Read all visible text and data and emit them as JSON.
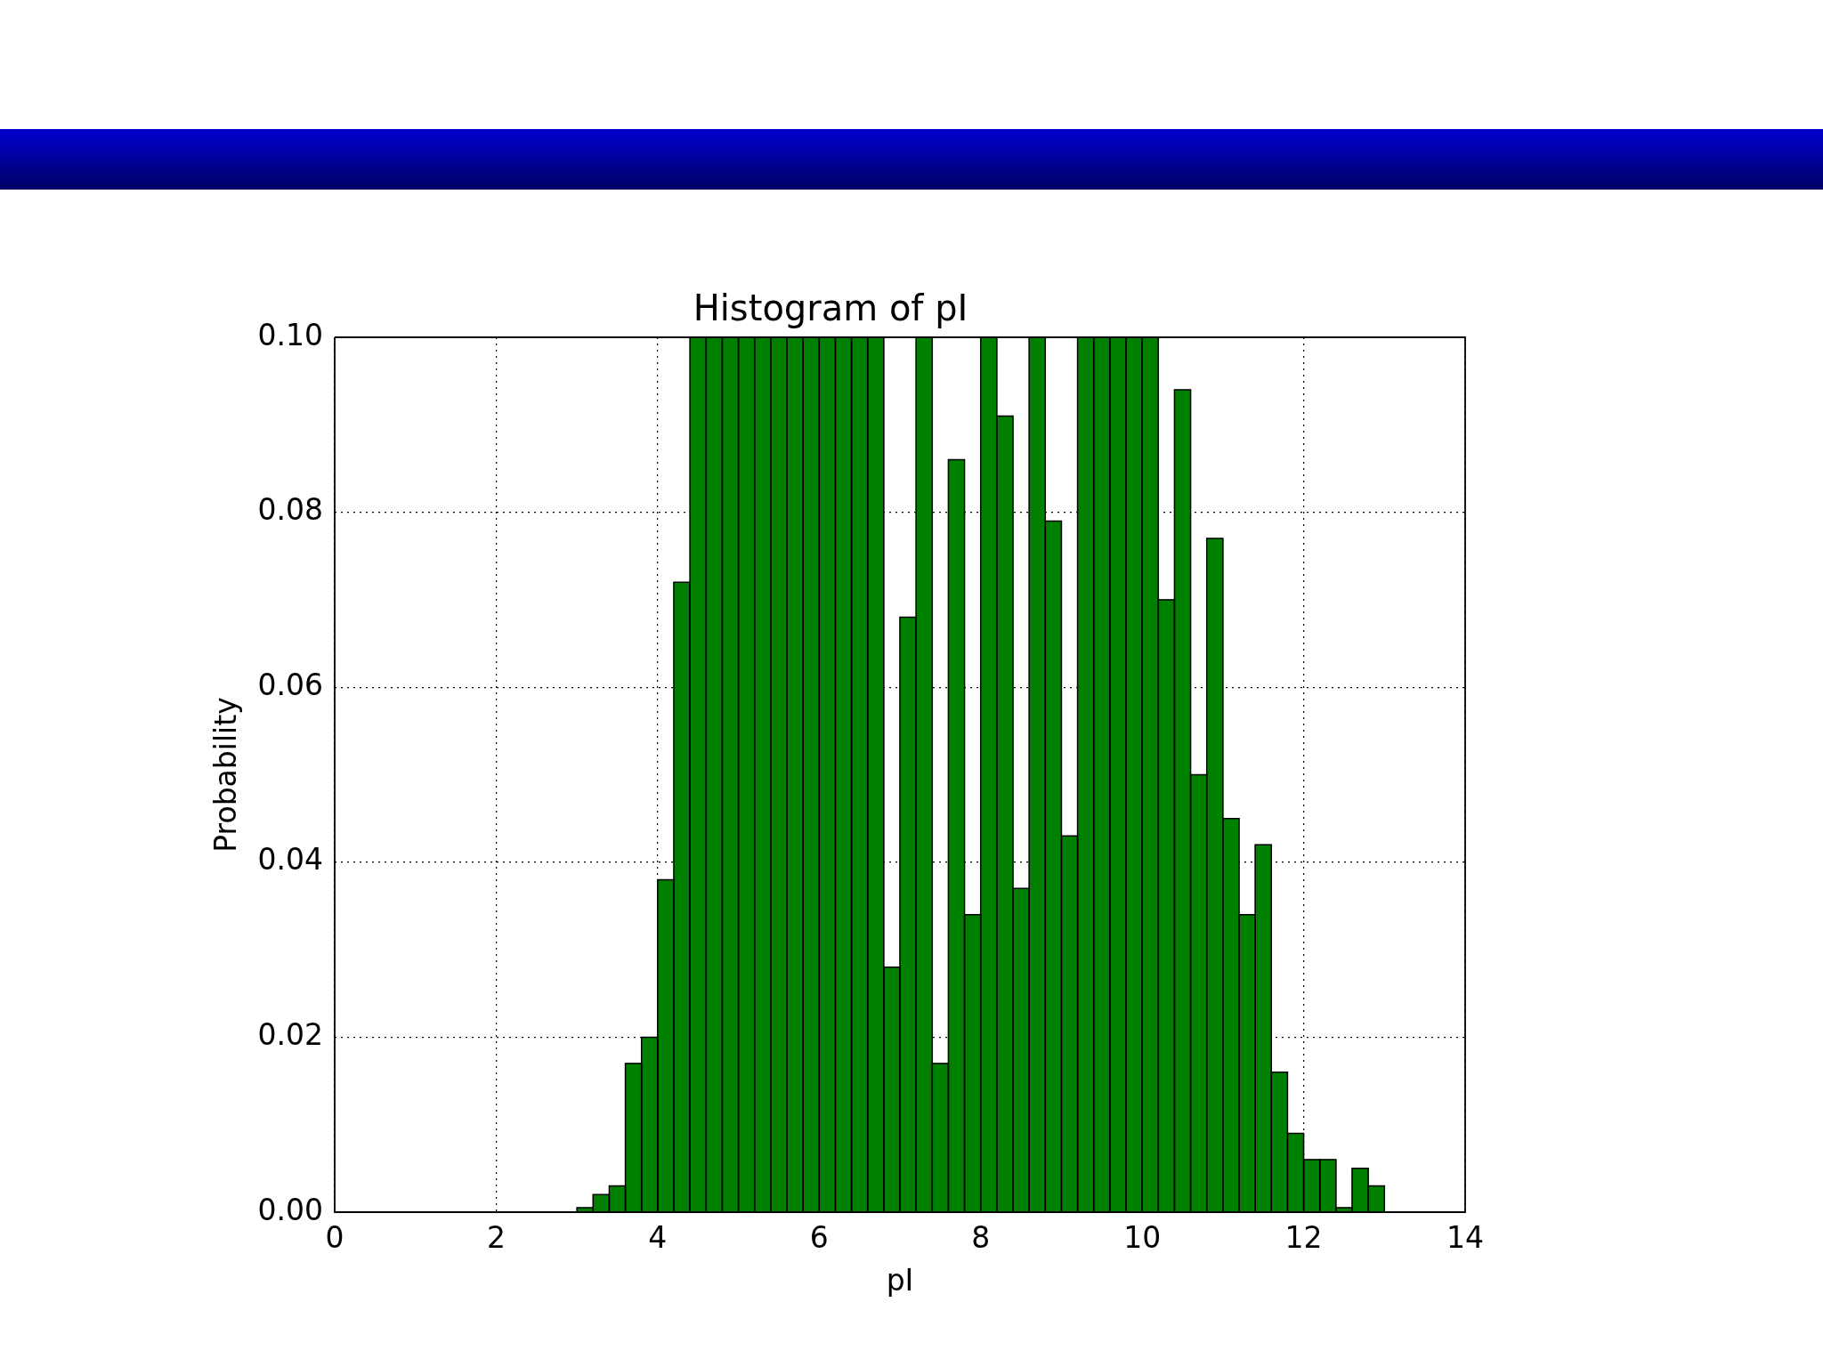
{
  "chart_data": {
    "type": "histogram",
    "title": "Histogram of pI",
    "xlabel": "pI",
    "ylabel": "Probability",
    "bins": [
      3.0,
      3.2,
      3.4,
      3.6,
      3.8,
      4.0,
      4.2,
      4.4,
      4.6,
      4.8,
      5.0,
      5.2,
      5.4,
      5.6,
      5.8,
      6.0,
      6.2,
      6.4,
      6.6,
      6.8,
      7.0,
      7.2,
      7.4,
      7.6,
      7.8,
      8.0,
      8.2,
      8.4,
      8.6,
      8.8,
      9.0,
      9.2,
      9.4,
      9.6,
      9.8,
      10.0,
      10.2,
      10.4,
      10.6,
      10.8,
      11.0,
      11.2,
      11.4,
      11.6,
      11.8,
      12.0,
      12.2,
      12.4,
      12.6,
      12.8,
      13.0
    ],
    "values": [
      0.0005,
      0.002,
      0.003,
      0.017,
      0.02,
      0.038,
      0.072,
      0.1,
      0.1,
      0.1,
      0.1,
      0.1,
      0.1,
      0.1,
      0.1,
      0.1,
      0.1,
      0.1,
      0.1,
      0.028,
      0.068,
      0.1,
      0.017,
      0.086,
      0.034,
      0.1,
      0.091,
      0.037,
      0.1,
      0.079,
      0.043,
      0.1,
      0.1,
      0.1,
      0.1,
      0.1,
      0.07,
      0.094,
      0.05,
      0.077,
      0.045,
      0.034,
      0.042,
      0.016,
      0.009,
      0.006,
      0.006,
      0.0005,
      0.005,
      0.003
    ],
    "color": "#008000",
    "xlim": [
      0,
      14
    ],
    "xticks": [
      0,
      2,
      4,
      6,
      8,
      10,
      12,
      14
    ],
    "ylim": [
      0,
      0.1
    ],
    "yticks": [
      {
        "value": 0,
        "label": "0.00"
      },
      {
        "value": 0.02,
        "label": "0.02"
      },
      {
        "value": 0.04,
        "label": "0.04"
      },
      {
        "value": 0.06,
        "label": "0.06"
      },
      {
        "value": 0.08,
        "label": "0.08"
      },
      {
        "value": 0.1,
        "label": "0.10"
      }
    ],
    "grid": true
  }
}
